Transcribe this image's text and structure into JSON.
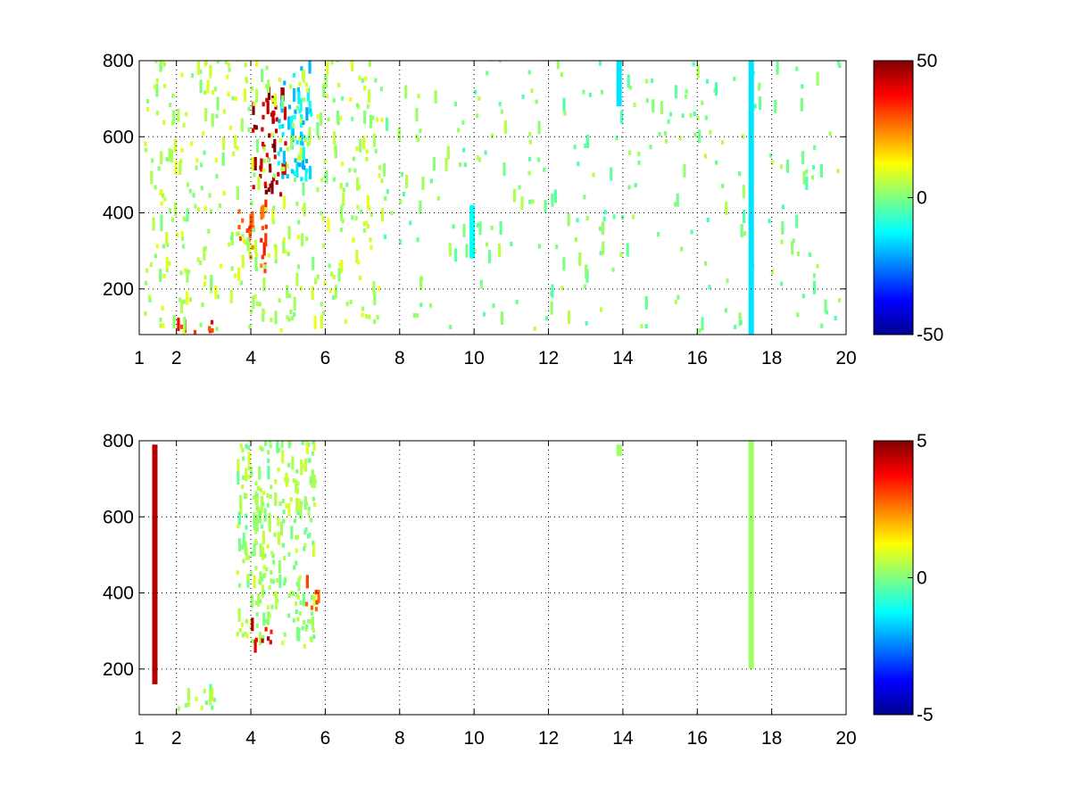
{
  "chart_data": [
    {
      "type": "heatmap",
      "title": "",
      "xlabel": "",
      "ylabel": "",
      "xlim": [
        1,
        20
      ],
      "ylim": [
        80,
        800
      ],
      "x_ticks": [
        1,
        2,
        4,
        6,
        8,
        10,
        12,
        14,
        16,
        18,
        20
      ],
      "x_tick_labels": [
        "1",
        "2",
        "4",
        "6",
        "8",
        "10",
        "12",
        "14",
        "16",
        "18",
        "20"
      ],
      "y_ticks": [
        200,
        400,
        600,
        800
      ],
      "y_tick_labels": [
        "200",
        "400",
        "600",
        "800"
      ],
      "grid": true,
      "colormap": "jet",
      "colorbar": {
        "range": [
          -50,
          50
        ],
        "tick_values": [
          50,
          0,
          -50
        ],
        "tick_labels": [
          "50",
          "0",
          "-50"
        ]
      },
      "features": [
        {
          "x": [
            4.0,
            4.9
          ],
          "y": [
            430,
            700
          ],
          "value": 45,
          "note": "red arc (upper)"
        },
        {
          "x": [
            3.6,
            4.4
          ],
          "y": [
            240,
            400
          ],
          "value": 30,
          "note": "orange-red arc (lower)"
        },
        {
          "x": [
            2.0,
            3.0
          ],
          "y": [
            80,
            120
          ],
          "value": 35,
          "note": "orange streak near bottom"
        },
        {
          "x": [
            4.7,
            5.6
          ],
          "y": [
            480,
            780
          ],
          "value": -15,
          "note": "cyan arc"
        },
        {
          "x": [
            1.0,
            7.5
          ],
          "y": [
            80,
            800
          ],
          "value": 5,
          "note": "dense scattered noise"
        },
        {
          "x": [
            7.5,
            20
          ],
          "y": [
            80,
            800
          ],
          "value": 0,
          "note": "sparse scattered noise"
        }
      ],
      "bands": [
        {
          "x": 13.9,
          "y": [
            680,
            800
          ],
          "value": -15
        },
        {
          "x": 17.45,
          "y": [
            80,
            800
          ],
          "value": -15
        },
        {
          "x": 9.95,
          "y": [
            280,
            420
          ],
          "value": -12
        }
      ]
    },
    {
      "type": "heatmap",
      "title": "",
      "xlabel": "",
      "ylabel": "",
      "xlim": [
        1,
        20
      ],
      "ylim": [
        80,
        800
      ],
      "x_ticks": [
        1,
        2,
        4,
        6,
        8,
        10,
        12,
        14,
        16,
        18,
        20
      ],
      "x_tick_labels": [
        "1",
        "2",
        "4",
        "6",
        "8",
        "10",
        "12",
        "14",
        "16",
        "18",
        "20"
      ],
      "y_ticks": [
        200,
        400,
        600,
        800
      ],
      "y_tick_labels": [
        "200",
        "400",
        "600",
        "800"
      ],
      "grid": true,
      "colormap": "jet",
      "colorbar": {
        "range": [
          -5,
          5
        ],
        "tick_values": [
          5,
          0,
          -5
        ],
        "tick_labels": [
          "5",
          "0",
          "-5"
        ]
      },
      "features": [
        {
          "x": [
            3.6,
            5.7
          ],
          "y": [
            240,
            800
          ],
          "value": 0.3,
          "note": "green plume"
        },
        {
          "x": [
            4.0,
            4.6
          ],
          "y": [
            240,
            300
          ],
          "value": 4,
          "note": "red cluster"
        },
        {
          "x": [
            5.4,
            5.8
          ],
          "y": [
            340,
            420
          ],
          "value": 3,
          "note": "red/orange specks"
        },
        {
          "x": [
            2.0,
            3.0
          ],
          "y": [
            80,
            140
          ],
          "value": 0.3,
          "note": "green streak near bottom"
        }
      ],
      "bands": [
        {
          "x": 1.42,
          "y": [
            160,
            790
          ],
          "value": 4.5
        },
        {
          "x": 13.9,
          "y": [
            760,
            790
          ],
          "value": 0.3
        },
        {
          "x": 17.45,
          "y": [
            200,
            800
          ],
          "value": 0.3
        }
      ]
    }
  ]
}
